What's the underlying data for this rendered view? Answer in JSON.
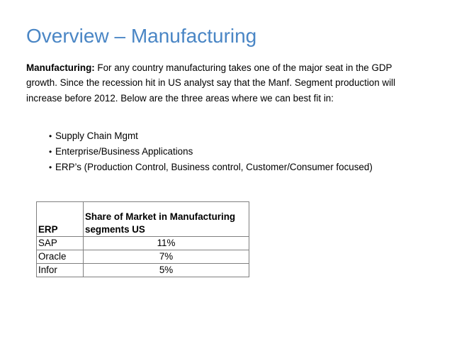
{
  "slide": {
    "title": "Overview – Manufacturing"
  },
  "intro": {
    "label": "Manufacturing:",
    "text": " For any country manufacturing takes one of the major seat in the GDP growth. Since the recession hit in US analyst say that the Manf. Segment production will increase before 2012. Below are the three areas where we can best fit in:"
  },
  "bullets": [
    "Supply Chain Mgmt",
    "Enterprise/Business Applications",
    "ERP’s (Production Control, Business control, Customer/Consumer focused)"
  ],
  "table": {
    "headers": [
      "ERP",
      "Share of Market in Manufacturing segments US"
    ],
    "rows": [
      [
        "SAP",
        "11%"
      ],
      [
        "Oracle",
        "7%"
      ],
      [
        "Infor",
        "5%"
      ]
    ]
  }
}
